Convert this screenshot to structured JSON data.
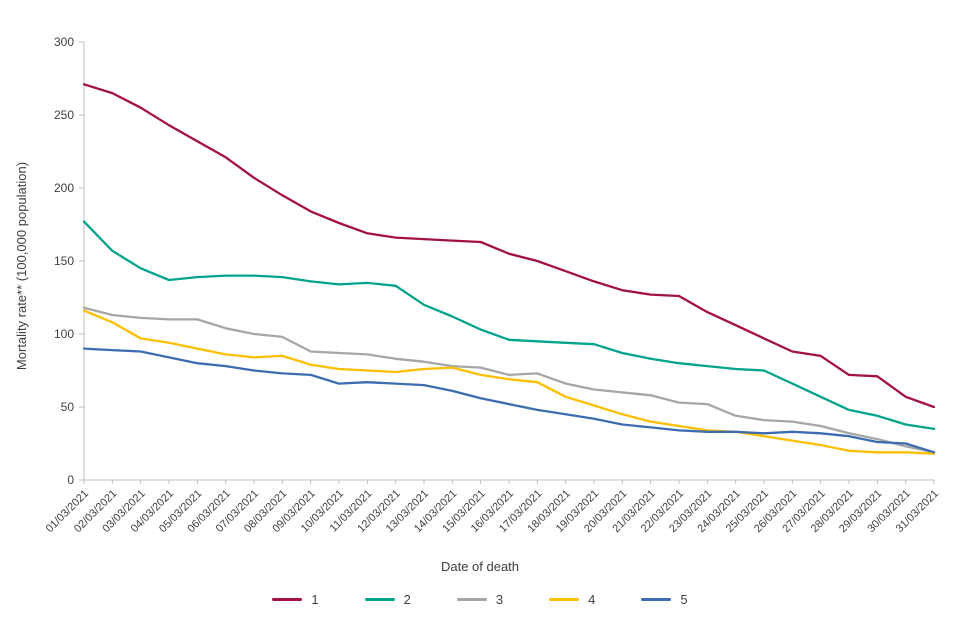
{
  "chart_data": {
    "type": "line",
    "title": "",
    "xlabel": "Date of death",
    "ylabel": "Mortality rate** (100,000 population)",
    "ylim": [
      0,
      300
    ],
    "yticks": [
      0,
      50,
      100,
      150,
      200,
      250,
      300
    ],
    "grid": false,
    "legend_position": "bottom",
    "axis_color": "#bfbfbf",
    "text_color": "#404040",
    "x": [
      "01/03/2021",
      "02/03/2021",
      "03/03/2021",
      "04/03/2021",
      "05/03/2021",
      "06/03/2021",
      "07/03/2021",
      "08/03/2021",
      "09/03/2021",
      "10/03/2021",
      "11/03/2021",
      "12/03/2021",
      "13/03/2021",
      "14/03/2021",
      "15/03/2021",
      "16/03/2021",
      "17/03/2021",
      "18/03/2021",
      "19/03/2021",
      "20/03/2021",
      "21/03/2021",
      "22/03/2021",
      "23/03/2021",
      "24/03/2021",
      "25/03/2021",
      "26/03/2021",
      "27/03/2021",
      "28/03/2021",
      "29/03/2021",
      "30/03/2021",
      "31/03/2021"
    ],
    "series": [
      {
        "name": "1",
        "color": "#a3123f",
        "values": [
          271,
          265,
          255,
          243,
          232,
          221,
          207,
          195,
          184,
          176,
          169,
          166,
          165,
          164,
          163,
          155,
          150,
          143,
          136,
          130,
          127,
          126,
          115,
          106,
          97,
          88,
          85,
          72,
          71,
          57,
          50
        ]
      },
      {
        "name": "2",
        "color": "#00a38b",
        "values": [
          177,
          157,
          145,
          137,
          139,
          140,
          140,
          139,
          136,
          134,
          135,
          133,
          120,
          112,
          103,
          96,
          95,
          94,
          93,
          87,
          83,
          80,
          78,
          76,
          75,
          66,
          57,
          48,
          44,
          38,
          35
        ]
      },
      {
        "name": "3",
        "color": "#a6a6a6",
        "values": [
          118,
          113,
          111,
          110,
          110,
          104,
          100,
          98,
          88,
          87,
          86,
          83,
          81,
          78,
          77,
          72,
          73,
          66,
          62,
          60,
          58,
          53,
          52,
          44,
          41,
          40,
          37,
          32,
          28,
          23,
          19
        ]
      },
      {
        "name": "4",
        "color": "#fcbf00",
        "values": [
          116,
          108,
          97,
          94,
          90,
          86,
          84,
          85,
          79,
          76,
          75,
          74,
          76,
          77,
          72,
          69,
          67,
          57,
          51,
          45,
          40,
          37,
          34,
          33,
          30,
          27,
          24,
          20,
          19,
          19,
          18
        ]
      },
      {
        "name": "5",
        "color": "#3e6cb0",
        "values": [
          90,
          89,
          88,
          84,
          80,
          78,
          75,
          73,
          72,
          66,
          67,
          66,
          65,
          61,
          56,
          52,
          48,
          45,
          42,
          38,
          36,
          34,
          33,
          33,
          32,
          33,
          32,
          30,
          26,
          25,
          19
        ]
      }
    ]
  }
}
